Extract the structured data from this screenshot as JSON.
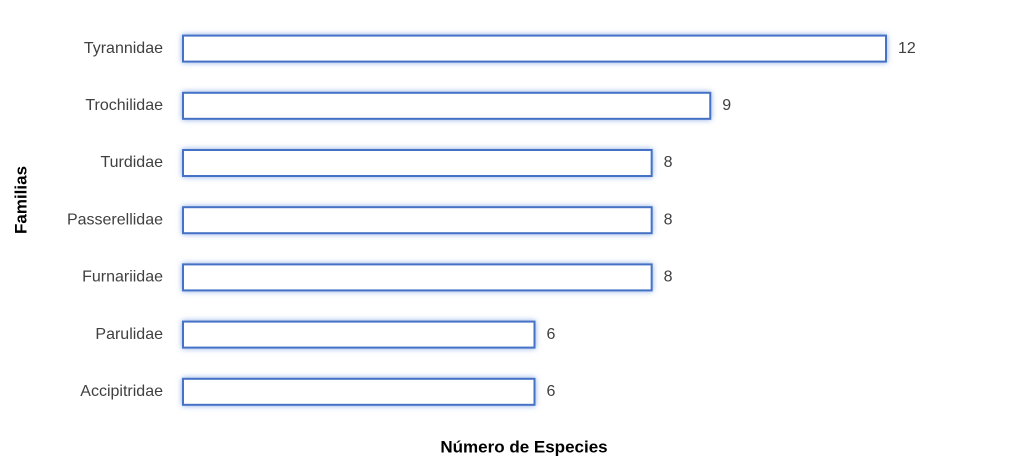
{
  "chart_data": {
    "type": "bar",
    "orientation": "horizontal",
    "x_label": "Número de Especies",
    "y_label": "Familias",
    "categories": [
      "Tyrannidae",
      "Trochilidae",
      "Turdidae",
      "Passerellidae",
      "Furnariidae",
      "Parulidae",
      "Accipitridae"
    ],
    "values": [
      12,
      9,
      8,
      8,
      8,
      6,
      6
    ],
    "color": "#4472c4"
  }
}
